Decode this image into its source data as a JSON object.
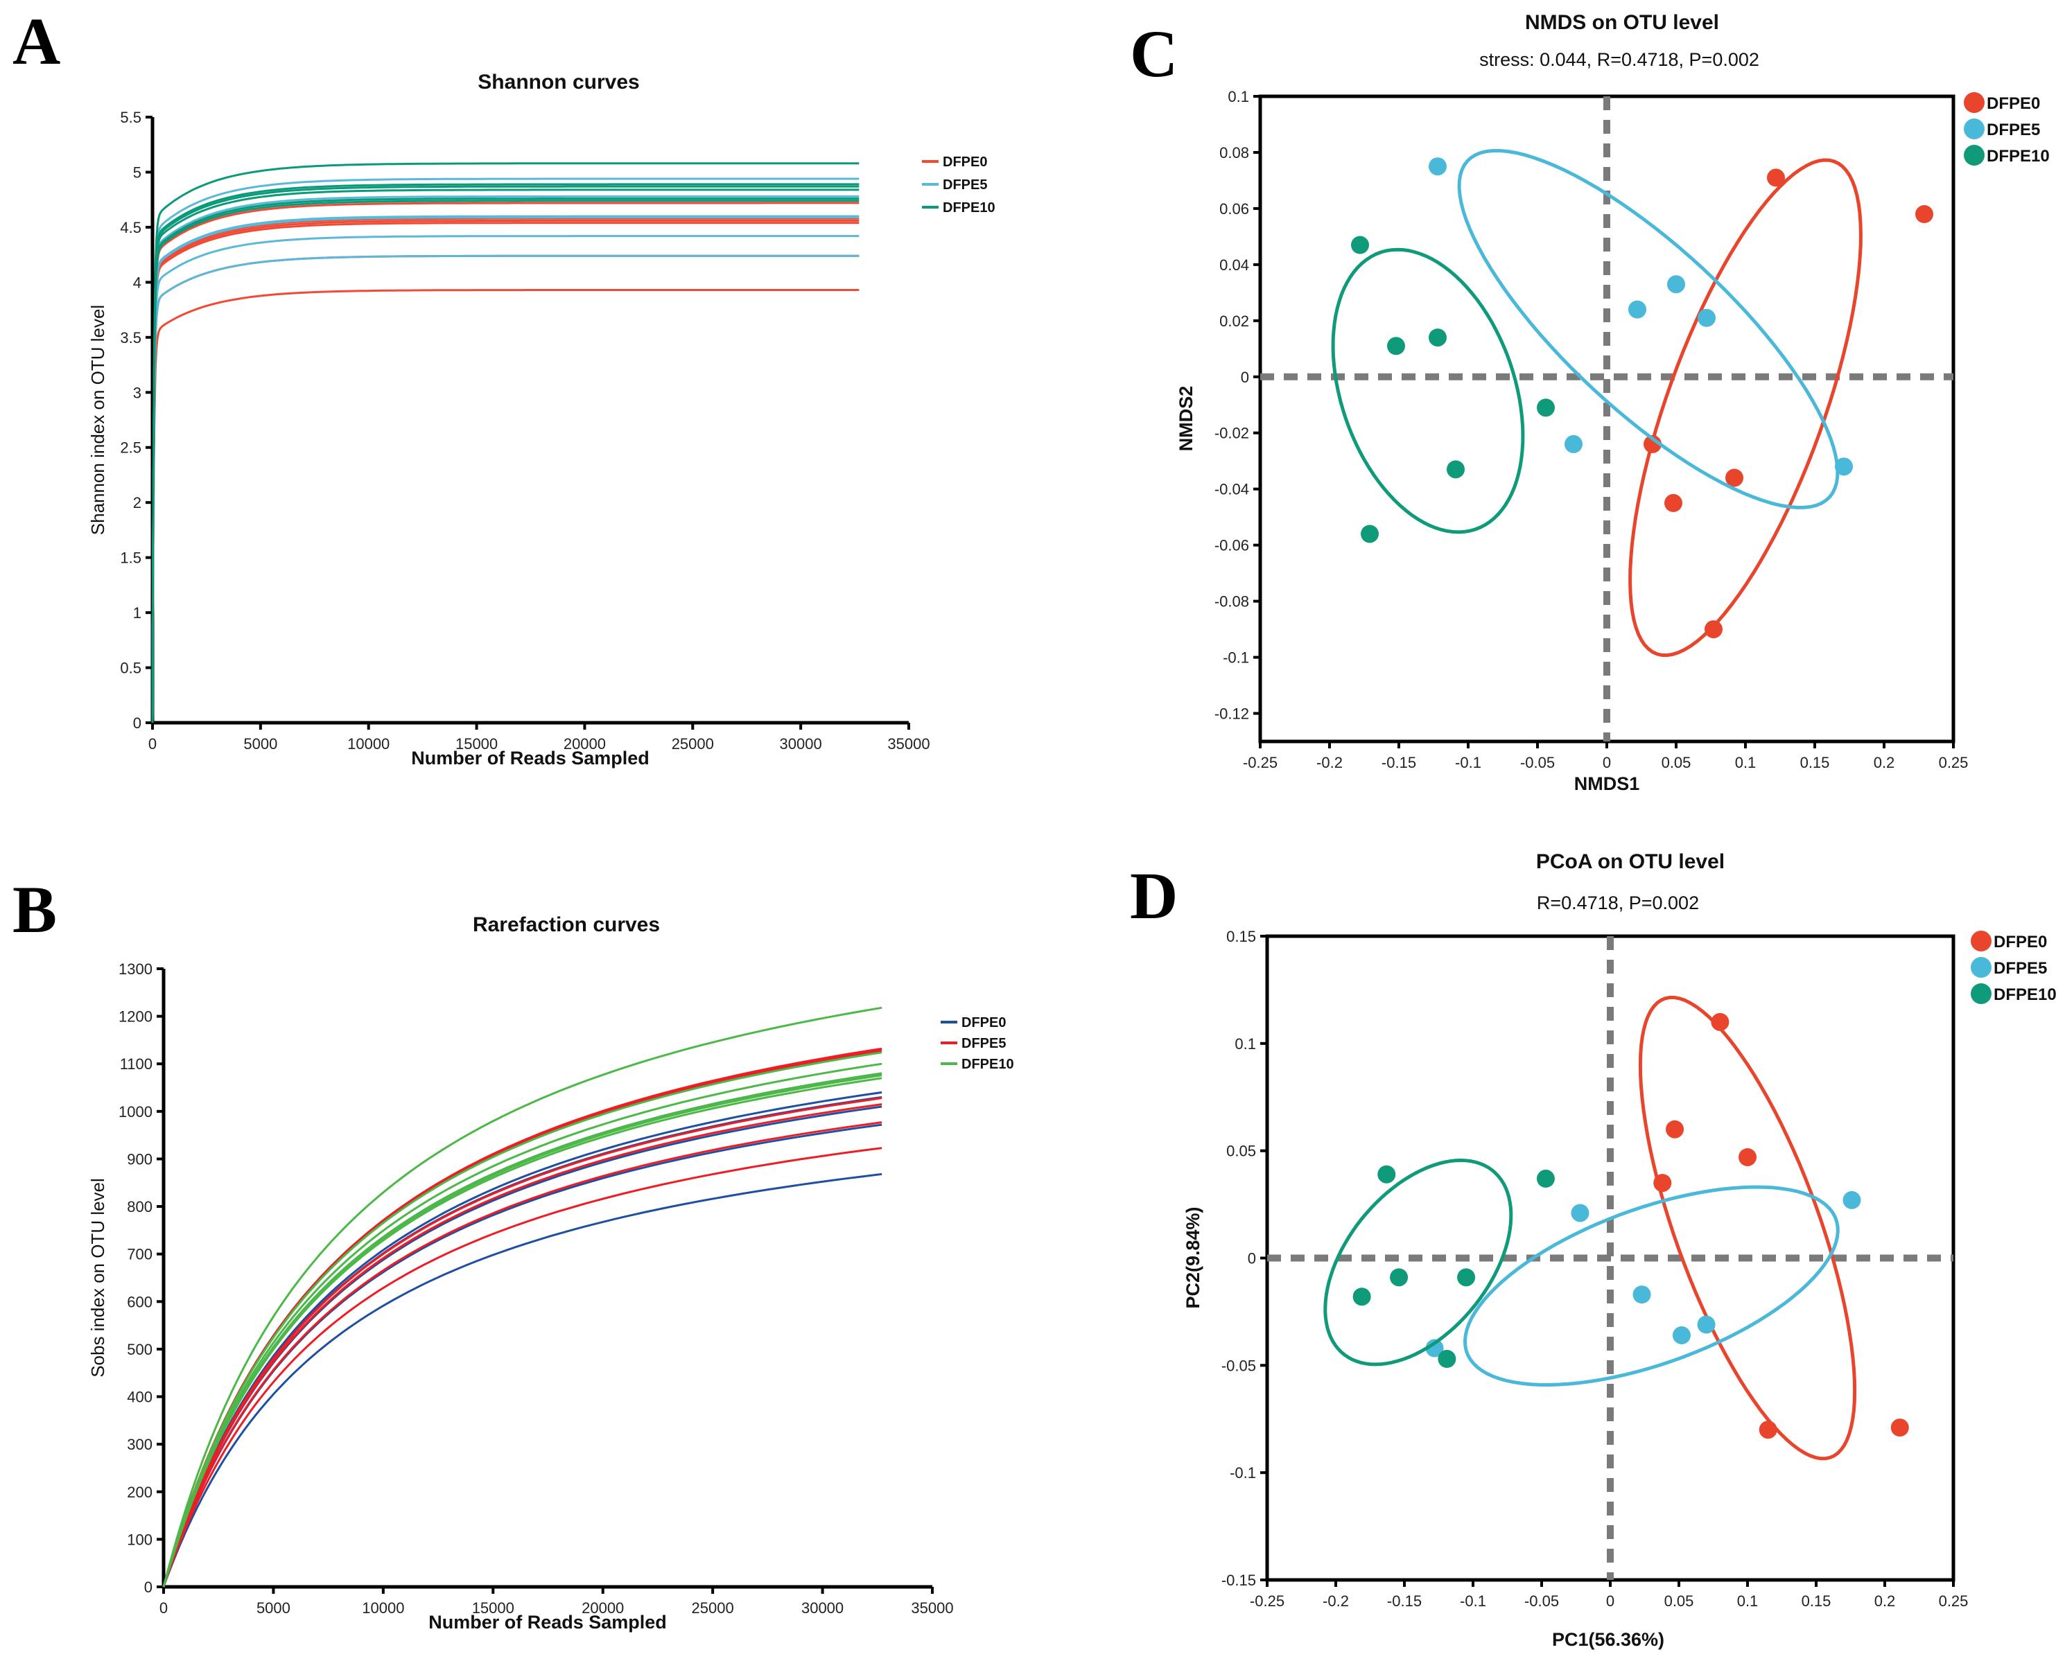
{
  "panel_labels": [
    "A",
    "B",
    "C",
    "D"
  ],
  "chart_data": [
    {
      "type": "line",
      "title": "Shannon curves",
      "xlabel": "Number of Reads Sampled",
      "ylabel": "Shannon index on OTU level",
      "xlim": [
        0,
        35000
      ],
      "ylim": [
        0,
        5.5
      ],
      "xticks": [
        "0",
        "5000",
        "10000",
        "15000",
        "20000",
        "25000",
        "30000",
        "35000"
      ],
      "yticks": [
        "0",
        "0.5",
        "1",
        "1.5",
        "2",
        "2.5",
        "3",
        "3.5",
        "4",
        "4.5",
        "5",
        "5.5"
      ],
      "x_max_sampled": 32700,
      "legend": "top-right",
      "series": [
        {
          "name": "DFPE0",
          "color": "#f04a35",
          "final_values": [
            4.72,
            4.58,
            4.56,
            4.54,
            4.24,
            3.93
          ]
        },
        {
          "name": "DFPE5",
          "color": "#5ab8d8",
          "final_values": [
            4.94,
            4.78,
            4.6,
            4.59,
            4.42,
            4.24
          ]
        },
        {
          "name": "DFPE10",
          "color": "#0a9a7a",
          "final_values": [
            5.08,
            4.89,
            4.87,
            4.84,
            4.76,
            4.74
          ]
        }
      ]
    },
    {
      "type": "line",
      "title": "Rarefaction curves",
      "xlabel": "Number of Reads Sampled",
      "ylabel": "Sobs index on OTU level",
      "xlim": [
        0,
        35000
      ],
      "ylim": [
        0,
        1300
      ],
      "xticks": [
        "0",
        "5000",
        "10000",
        "15000",
        "20000",
        "25000",
        "30000",
        "35000"
      ],
      "yticks": [
        "0",
        "100",
        "200",
        "300",
        "400",
        "500",
        "600",
        "700",
        "800",
        "900",
        "1000",
        "1100",
        "1200",
        "1300"
      ],
      "x_max_sampled": 32700,
      "legend": "top-right",
      "series": [
        {
          "name": "DFPE0",
          "color": "#1f4fa0",
          "final_values": [
            1080,
            1040,
            1030,
            1010,
            972,
            868
          ]
        },
        {
          "name": "DFPE5",
          "color": "#ee1c25",
          "final_values": [
            1132,
            1128,
            1028,
            1015,
            977,
            923
          ]
        },
        {
          "name": "DFPE10",
          "color": "#4cb848",
          "final_values": [
            1218,
            1124,
            1100,
            1080,
            1076,
            1070
          ]
        }
      ]
    },
    {
      "type": "scatter",
      "title": "NMDS on OTU level",
      "subtitle": "stress: 0.044, R=0.4718, P=0.002",
      "xlabel": "NMDS1",
      "ylabel": "NMDS2",
      "xlim": [
        -0.25,
        0.25
      ],
      "ylim": [
        -0.13,
        0.1
      ],
      "xticks": [
        "-0.25",
        "-0.2",
        "-0.15",
        "-0.1",
        "-0.05",
        "0",
        "0.05",
        "0.1",
        "0.15",
        "0.2",
        "0.25"
      ],
      "yticks": [
        "-0.12",
        "-0.1",
        "-0.08",
        "-0.06",
        "-0.04",
        "-0.02",
        "0",
        "0.02",
        "0.04",
        "0.06",
        "0.08",
        "0.1"
      ],
      "legend": "top-right",
      "series": [
        {
          "name": "DFPE0",
          "color": "#e8452c",
          "points": [
            [
              0.122,
              0.071
            ],
            [
              0.229,
              0.058
            ],
            [
              0.033,
              -0.024
            ],
            [
              0.092,
              -0.036
            ],
            [
              0.048,
              -0.045
            ],
            [
              0.077,
              -0.09
            ]
          ],
          "ellipse": {
            "center": [
              0.1,
              -0.011
            ],
            "axis1": [
              0.07,
              0.086
            ],
            "axis2": [
              0.045,
              -0.02
            ]
          }
        },
        {
          "name": "DFPE5",
          "color": "#4ab8d8",
          "points": [
            [
              -0.122,
              0.075
            ],
            [
              0.05,
              0.033
            ],
            [
              0.022,
              0.024
            ],
            [
              0.072,
              0.021
            ],
            [
              -0.024,
              -0.024
            ],
            [
              0.171,
              -0.032
            ]
          ],
          "ellipse": {
            "center": [
              0.03,
              0.017
            ],
            "axis1": [
              0.135,
              -0.045
            ],
            "axis2": [
              -0.02,
              0.045
            ]
          }
        },
        {
          "name": "DFPE10",
          "color": "#0f9a7a",
          "points": [
            [
              -0.178,
              0.047
            ],
            [
              -0.152,
              0.011
            ],
            [
              -0.122,
              0.014
            ],
            [
              -0.044,
              -0.011
            ],
            [
              -0.109,
              -0.033
            ],
            [
              -0.171,
              -0.056
            ]
          ],
          "ellipse": {
            "center": [
              -0.129,
              -0.005
            ],
            "axis1": [
              0.067,
              -0.006
            ],
            "axis2": [
              -0.014,
              0.05
            ]
          }
        }
      ]
    },
    {
      "type": "scatter",
      "title": "PCoA on OTU level",
      "subtitle": "R=0.4718, P=0.002",
      "xlabel": "PC1(56.36%)",
      "ylabel": "PC2(9.84%)",
      "xlim": [
        -0.25,
        0.25
      ],
      "ylim": [
        -0.15,
        0.15
      ],
      "xticks": [
        "-0.25",
        "-0.2",
        "-0.15",
        "-0.1",
        "-0.05",
        "0",
        "0.05",
        "0.1",
        "0.15",
        "0.2",
        "0.25"
      ],
      "yticks": [
        "-0.15",
        "-0.1",
        "-0.05",
        "0",
        "0.05",
        "0.1",
        "0.15"
      ],
      "legend": "top-right",
      "series": [
        {
          "name": "DFPE0",
          "color": "#e8452c",
          "points": [
            [
              0.08,
              0.11
            ],
            [
              0.047,
              0.06
            ],
            [
              0.1,
              0.047
            ],
            [
              0.038,
              0.035
            ],
            [
              0.115,
              -0.08
            ],
            [
              0.211,
              -0.079
            ]
          ],
          "ellipse": {
            "center": [
              0.1,
              0.014
            ],
            "axis1": [
              -0.06,
              0.107
            ],
            "axis2": [
              0.05,
              0.01
            ]
          }
        },
        {
          "name": "DFPE5",
          "color": "#4ab8d8",
          "points": [
            [
              -0.022,
              0.021
            ],
            [
              0.176,
              0.027
            ],
            [
              0.023,
              -0.017
            ],
            [
              0.052,
              -0.036
            ],
            [
              0.07,
              -0.031
            ],
            [
              -0.128,
              -0.042
            ]
          ],
          "ellipse": {
            "center": [
              0.03,
              -0.013
            ],
            "axis1": [
              0.135,
              0.03
            ],
            "axis2": [
              -0.015,
              0.035
            ]
          }
        },
        {
          "name": "DFPE10",
          "color": "#0f9a7a",
          "points": [
            [
              -0.163,
              0.039
            ],
            [
              -0.047,
              0.037
            ],
            [
              -0.154,
              -0.009
            ],
            [
              -0.105,
              -0.009
            ],
            [
              -0.181,
              -0.018
            ],
            [
              -0.119,
              -0.047
            ]
          ],
          "ellipse": {
            "center": [
              -0.14,
              -0.002
            ],
            "axis1": [
              0.066,
              0.012
            ],
            "axis2": [
              0.015,
              0.046
            ]
          }
        }
      ]
    }
  ]
}
